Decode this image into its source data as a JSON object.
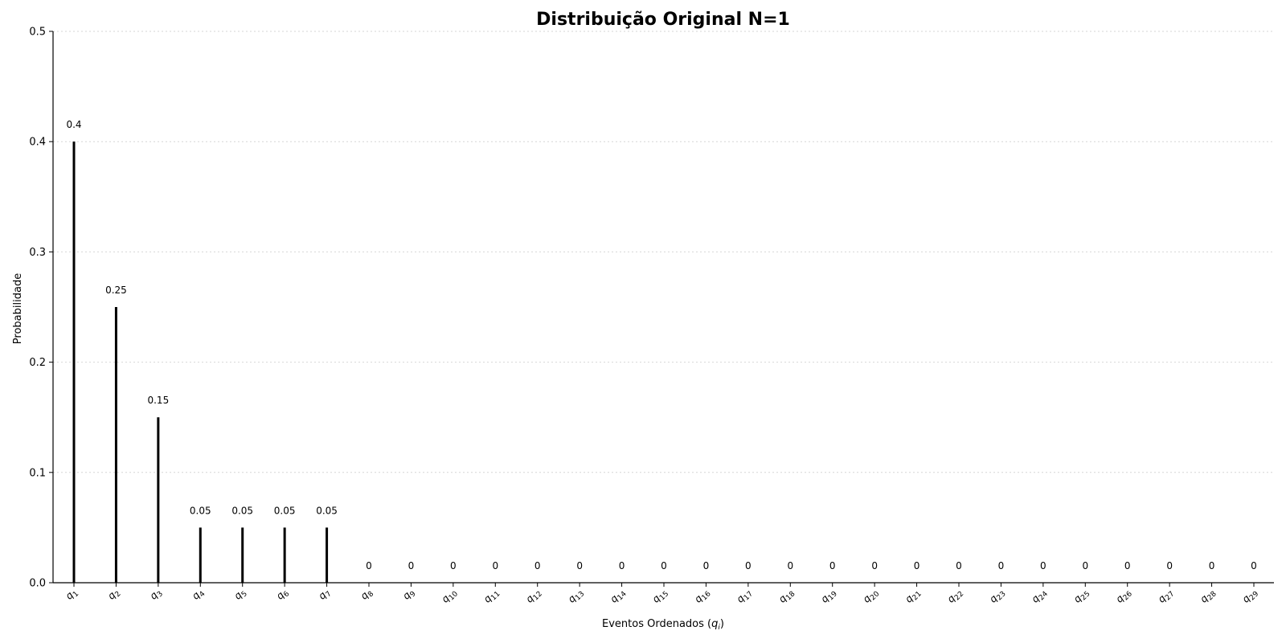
{
  "chart_data": {
    "type": "bar",
    "title": "Distribuição Original N=1",
    "xlabel": "Eventos Ordenados (q_i)",
    "ylabel": "Probabilidade",
    "ylim": [
      0,
      0.5
    ],
    "yticks": [
      "0.0",
      "0.1",
      "0.2",
      "0.3",
      "0.4",
      "0.5"
    ],
    "grid": "horizontal-dotted",
    "categories": [
      "q1",
      "q2",
      "q3",
      "q4",
      "q5",
      "q6",
      "q7",
      "q8",
      "q9",
      "q10",
      "q11",
      "q12",
      "q13",
      "q14",
      "q15",
      "q16",
      "q17",
      "q18",
      "q19",
      "q20",
      "q21",
      "q22",
      "q23",
      "q24",
      "q25",
      "q26",
      "q27",
      "q28",
      "q29"
    ],
    "values": [
      0.4,
      0.25,
      0.15,
      0.05,
      0.05,
      0.05,
      0.05,
      0,
      0,
      0,
      0,
      0,
      0,
      0,
      0,
      0,
      0,
      0,
      0,
      0,
      0,
      0,
      0,
      0,
      0,
      0,
      0,
      0,
      0
    ],
    "value_labels": [
      "0.4",
      "0.25",
      "0.15",
      "0.05",
      "0.05",
      "0.05",
      "0.05",
      "0",
      "0",
      "0",
      "0",
      "0",
      "0",
      "0",
      "0",
      "0",
      "0",
      "0",
      "0",
      "0",
      "0",
      "0",
      "0",
      "0",
      "0",
      "0",
      "0",
      "0",
      "0"
    ],
    "bar_color": "#000000"
  }
}
